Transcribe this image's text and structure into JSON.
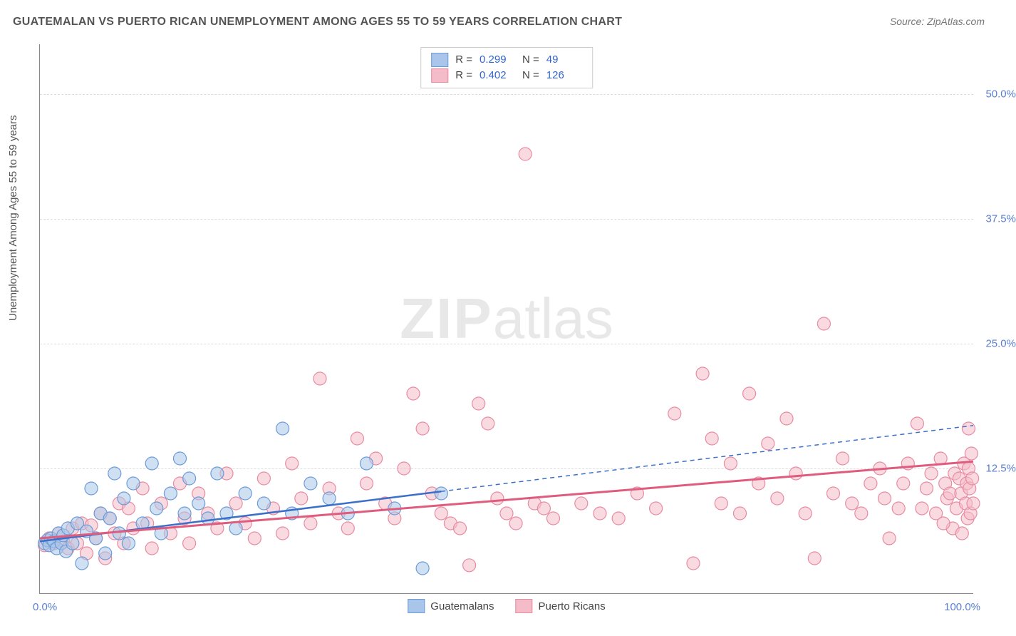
{
  "title": "GUATEMALAN VS PUERTO RICAN UNEMPLOYMENT AMONG AGES 55 TO 59 YEARS CORRELATION CHART",
  "source": "Source: ZipAtlas.com",
  "ylabel": "Unemployment Among Ages 55 to 59 years",
  "watermark_bold": "ZIP",
  "watermark_rest": "atlas",
  "chart": {
    "type": "scatter",
    "xlim": [
      0,
      100
    ],
    "ylim": [
      0,
      55
    ],
    "xtick_labels": [
      "0.0%",
      "100.0%"
    ],
    "ytick_values": [
      12.5,
      25.0,
      37.5,
      50.0
    ],
    "ytick_labels": [
      "12.5%",
      "25.0%",
      "37.5%",
      "50.0%"
    ],
    "grid_color": "#dddddd",
    "axis_color": "#888888",
    "background": "#ffffff",
    "marker_radius": 9,
    "marker_opacity": 0.55,
    "series": [
      {
        "name": "Guatemalans",
        "fill": "#a9c6ea",
        "stroke": "#6a9bd8",
        "r_value": "0.299",
        "n_value": "49",
        "trend": {
          "x1": 0,
          "y1": 5.2,
          "x2": 43,
          "y2": 10.2,
          "x_ext": 100,
          "y_ext": 16.8,
          "color": "#3b6fc9",
          "width": 2.5,
          "dash": "6,5"
        },
        "points": [
          [
            0.5,
            5.0
          ],
          [
            0.8,
            5.3
          ],
          [
            1.0,
            4.8
          ],
          [
            1.2,
            5.5
          ],
          [
            1.5,
            5.2
          ],
          [
            1.8,
            4.5
          ],
          [
            2.0,
            6.0
          ],
          [
            2.3,
            5.0
          ],
          [
            2.5,
            5.8
          ],
          [
            2.8,
            4.2
          ],
          [
            3.0,
            6.5
          ],
          [
            3.5,
            5.0
          ],
          [
            4.0,
            7.0
          ],
          [
            4.5,
            3.0
          ],
          [
            5.0,
            6.2
          ],
          [
            5.5,
            10.5
          ],
          [
            6.0,
            5.5
          ],
          [
            6.5,
            8.0
          ],
          [
            7.0,
            4.0
          ],
          [
            7.5,
            7.5
          ],
          [
            8.0,
            12.0
          ],
          [
            8.5,
            6.0
          ],
          [
            9.0,
            9.5
          ],
          [
            9.5,
            5.0
          ],
          [
            10.0,
            11.0
          ],
          [
            11.0,
            7.0
          ],
          [
            12.0,
            13.0
          ],
          [
            12.5,
            8.5
          ],
          [
            13.0,
            6.0
          ],
          [
            14.0,
            10.0
          ],
          [
            15.0,
            13.5
          ],
          [
            15.5,
            8.0
          ],
          [
            16.0,
            11.5
          ],
          [
            17.0,
            9.0
          ],
          [
            18.0,
            7.5
          ],
          [
            19.0,
            12.0
          ],
          [
            20.0,
            8.0
          ],
          [
            21.0,
            6.5
          ],
          [
            22.0,
            10.0
          ],
          [
            24.0,
            9.0
          ],
          [
            26.0,
            16.5
          ],
          [
            27.0,
            8.0
          ],
          [
            29.0,
            11.0
          ],
          [
            31.0,
            9.5
          ],
          [
            33.0,
            8.0
          ],
          [
            35.0,
            13.0
          ],
          [
            38.0,
            8.5
          ],
          [
            41.0,
            2.5
          ],
          [
            43.0,
            10.0
          ]
        ]
      },
      {
        "name": "Puerto Ricans",
        "fill": "#f4bcc8",
        "stroke": "#e88ba1",
        "r_value": "0.402",
        "n_value": "126",
        "trend": {
          "x1": 0,
          "y1": 5.5,
          "x2": 100,
          "y2": 13.2,
          "color": "#e05c7e",
          "width": 3,
          "dash": "none"
        },
        "points": [
          [
            0.5,
            4.8
          ],
          [
            1.0,
            5.5
          ],
          [
            1.5,
            5.0
          ],
          [
            2.0,
            6.0
          ],
          [
            2.5,
            5.2
          ],
          [
            3.0,
            4.5
          ],
          [
            3.5,
            6.5
          ],
          [
            4.0,
            5.0
          ],
          [
            4.5,
            7.0
          ],
          [
            5.0,
            4.0
          ],
          [
            5.5,
            6.8
          ],
          [
            6.0,
            5.5
          ],
          [
            6.5,
            8.0
          ],
          [
            7.0,
            3.5
          ],
          [
            7.5,
            7.5
          ],
          [
            8.0,
            6.0
          ],
          [
            8.5,
            9.0
          ],
          [
            9.0,
            5.0
          ],
          [
            9.5,
            8.5
          ],
          [
            10.0,
            6.5
          ],
          [
            11.0,
            10.5
          ],
          [
            11.5,
            7.0
          ],
          [
            12.0,
            4.5
          ],
          [
            13.0,
            9.0
          ],
          [
            14.0,
            6.0
          ],
          [
            15.0,
            11.0
          ],
          [
            15.5,
            7.5
          ],
          [
            16.0,
            5.0
          ],
          [
            17.0,
            10.0
          ],
          [
            18.0,
            8.0
          ],
          [
            19.0,
            6.5
          ],
          [
            20.0,
            12.0
          ],
          [
            21.0,
            9.0
          ],
          [
            22.0,
            7.0
          ],
          [
            23.0,
            5.5
          ],
          [
            24.0,
            11.5
          ],
          [
            25.0,
            8.5
          ],
          [
            26.0,
            6.0
          ],
          [
            27.0,
            13.0
          ],
          [
            28.0,
            9.5
          ],
          [
            29.0,
            7.0
          ],
          [
            30.0,
            21.5
          ],
          [
            31.0,
            10.5
          ],
          [
            32.0,
            8.0
          ],
          [
            33.0,
            6.5
          ],
          [
            34.0,
            15.5
          ],
          [
            35.0,
            11.0
          ],
          [
            36.0,
            13.5
          ],
          [
            37.0,
            9.0
          ],
          [
            38.0,
            7.5
          ],
          [
            39.0,
            12.5
          ],
          [
            40.0,
            20.0
          ],
          [
            41.0,
            16.5
          ],
          [
            42.0,
            10.0
          ],
          [
            43.0,
            8.0
          ],
          [
            44.0,
            7.0
          ],
          [
            45.0,
            6.5
          ],
          [
            46.0,
            2.8
          ],
          [
            47.0,
            19.0
          ],
          [
            48.0,
            17.0
          ],
          [
            49.0,
            9.5
          ],
          [
            50.0,
            8.0
          ],
          [
            51.0,
            7.0
          ],
          [
            52.0,
            44.0
          ],
          [
            53.0,
            9.0
          ],
          [
            54.0,
            8.5
          ],
          [
            55.0,
            7.5
          ],
          [
            58.0,
            9.0
          ],
          [
            60.0,
            8.0
          ],
          [
            62.0,
            7.5
          ],
          [
            64.0,
            10.0
          ],
          [
            66.0,
            8.5
          ],
          [
            68.0,
            18.0
          ],
          [
            70.0,
            3.0
          ],
          [
            71.0,
            22.0
          ],
          [
            72.0,
            15.5
          ],
          [
            73.0,
            9.0
          ],
          [
            74.0,
            13.0
          ],
          [
            75.0,
            8.0
          ],
          [
            76.0,
            20.0
          ],
          [
            77.0,
            11.0
          ],
          [
            78.0,
            15.0
          ],
          [
            79.0,
            9.5
          ],
          [
            80.0,
            17.5
          ],
          [
            81.0,
            12.0
          ],
          [
            82.0,
            8.0
          ],
          [
            83.0,
            3.5
          ],
          [
            84.0,
            27.0
          ],
          [
            85.0,
            10.0
          ],
          [
            86.0,
            13.5
          ],
          [
            87.0,
            9.0
          ],
          [
            88.0,
            8.0
          ],
          [
            89.0,
            11.0
          ],
          [
            90.0,
            12.5
          ],
          [
            91.0,
            5.5
          ],
          [
            92.0,
            8.5
          ],
          [
            93.0,
            13.0
          ],
          [
            94.0,
            17.0
          ],
          [
            95.0,
            10.5
          ],
          [
            95.5,
            12.0
          ],
          [
            96.0,
            8.0
          ],
          [
            96.5,
            13.5
          ],
          [
            97.0,
            11.0
          ],
          [
            97.2,
            9.5
          ],
          [
            97.5,
            10.0
          ],
          [
            97.8,
            6.5
          ],
          [
            98.0,
            12.0
          ],
          [
            98.2,
            8.5
          ],
          [
            98.5,
            11.5
          ],
          [
            98.7,
            10.0
          ],
          [
            99.0,
            13.0
          ],
          [
            99.2,
            9.0
          ],
          [
            99.3,
            11.0
          ],
          [
            99.4,
            7.5
          ],
          [
            99.5,
            12.5
          ],
          [
            99.6,
            10.5
          ],
          [
            99.7,
            8.0
          ],
          [
            99.8,
            14.0
          ],
          [
            99.9,
            11.5
          ],
          [
            100.0,
            9.0
          ],
          [
            99.5,
            16.5
          ],
          [
            98.8,
            6.0
          ],
          [
            96.8,
            7.0
          ],
          [
            94.5,
            8.5
          ],
          [
            92.5,
            11.0
          ],
          [
            90.5,
            9.5
          ]
        ]
      }
    ]
  },
  "legend_bottom": [
    {
      "label": "Guatemalans",
      "fill": "#a9c6ea",
      "stroke": "#6a9bd8"
    },
    {
      "label": "Puerto Ricans",
      "fill": "#f4bcc8",
      "stroke": "#e88ba1"
    }
  ],
  "colors": {
    "tick_label": "#5b7fd1",
    "stat_value": "#3366cc"
  }
}
